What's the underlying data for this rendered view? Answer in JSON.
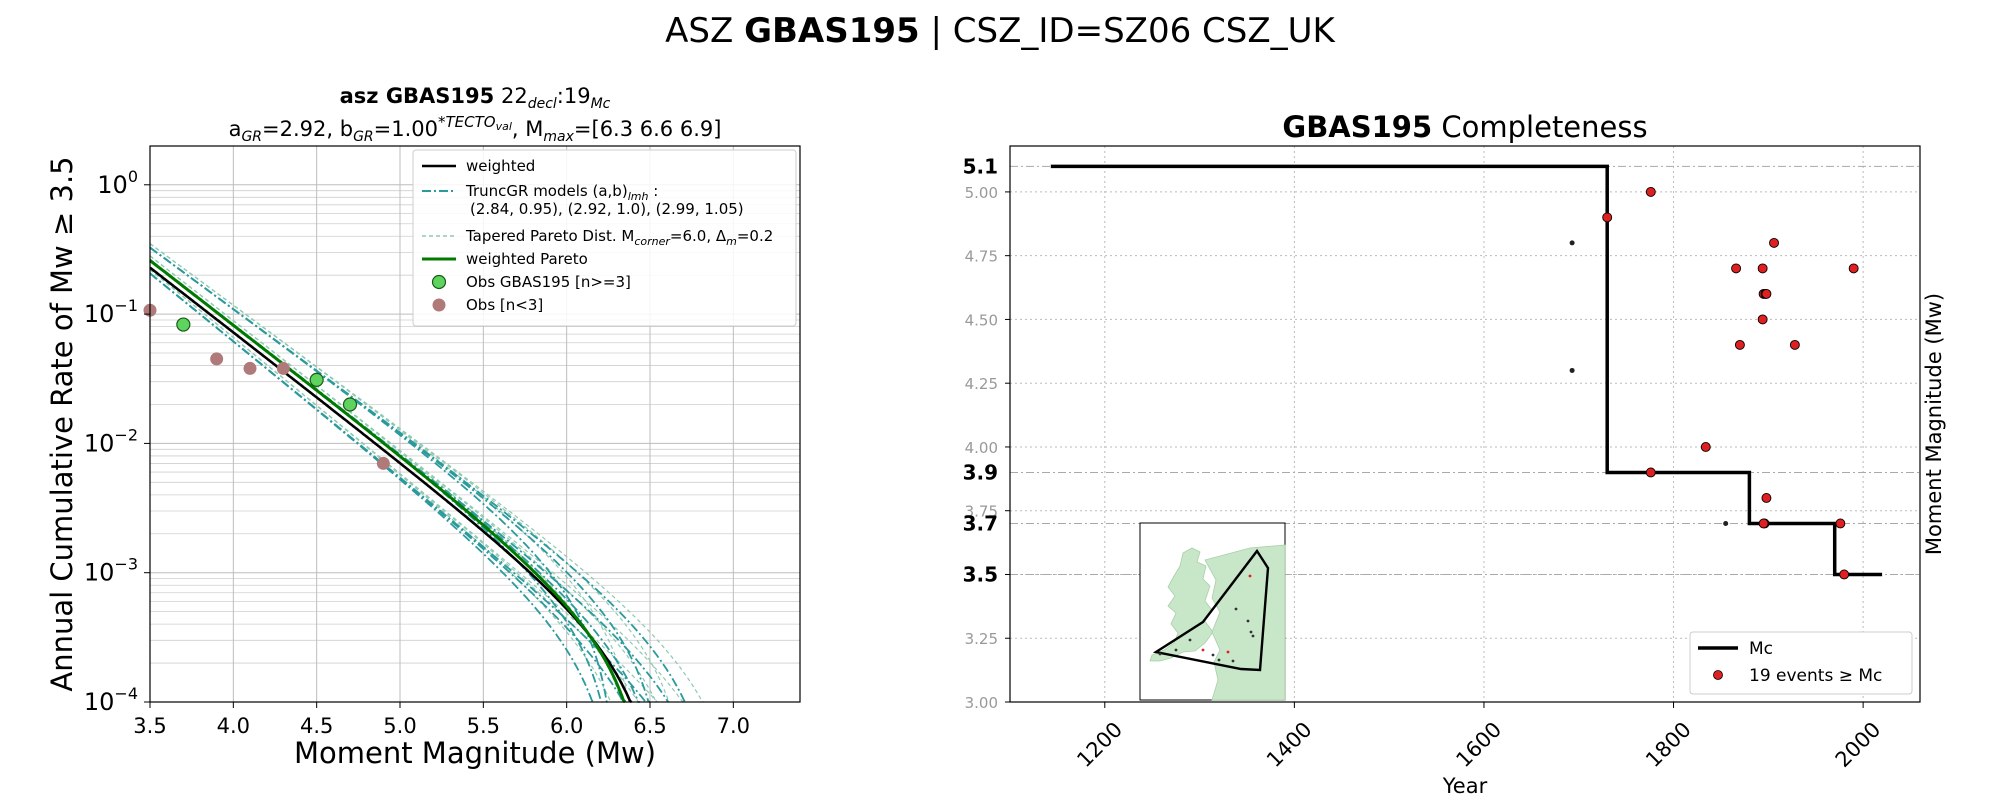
{
  "suptitle": {
    "pre": "ASZ ",
    "bold": "GBAS195",
    "post": " | CSZ_ID=SZ06 CSZ_UK"
  },
  "colors": {
    "weighted": "#000000",
    "truncgr": "#2a9a9c",
    "tapered": "#8ec9b0",
    "pareto": "#007a00",
    "obs_main": "#5ed35e",
    "obs_small": "#b07a7a",
    "events": "#e02020",
    "mc": "#000000",
    "map_land": "#c8e6c8"
  },
  "chart_data": [
    {
      "type": "line",
      "title_line1": {
        "bold": "asz GBAS195",
        "text": "22",
        "sub1": "decl",
        "mid": ":19",
        "sub2": "Mc"
      },
      "title_line2": {
        "a": "a",
        "a_sub": "GR",
        "a_val": "=2.92,  b",
        "b_sub": "GR",
        "b_val": "=1.00",
        "b_sup": "*TECTO",
        "b_sup_sub": "val",
        "m": ", M",
        "m_sub": "max",
        "m_val": "=[6.3 6.6 6.9]"
      },
      "xlabel": "Moment Magnitude (Mw)",
      "ylabel": "Annual Cumulative Rate of Mw  ≥  3.5",
      "xlim": [
        3.5,
        7.4
      ],
      "ylim_log10": [
        -4,
        0.3
      ],
      "log_y": true,
      "xticks": [
        3.5,
        4.0,
        4.5,
        5.0,
        5.5,
        6.0,
        6.5,
        7.0
      ],
      "xtick_labels": [
        "3.5",
        "4.0",
        "4.5",
        "5.0",
        "5.5",
        "6.0",
        "6.5",
        "7.0"
      ],
      "yticks": [
        {
          "base": "10",
          "exp": "0",
          "v": 0
        },
        {
          "base": "10",
          "exp": "−1",
          "v": -1
        },
        {
          "base": "10",
          "exp": "−2",
          "v": -2
        },
        {
          "base": "10",
          "exp": "−3",
          "v": -3
        },
        {
          "base": "10",
          "exp": "−4",
          "v": -4
        }
      ],
      "grid": true,
      "legend_position": "top-right",
      "a_gr": 2.92,
      "b_gr": 1.0,
      "mmax": [
        6.3,
        6.6,
        6.9
      ],
      "truncgr_ab": [
        [
          2.84,
          0.95
        ],
        [
          2.92,
          1.0
        ],
        [
          2.99,
          1.05
        ]
      ],
      "legend": [
        {
          "label": "weighted"
        },
        {
          "label": "TruncGR models (a,b)",
          "sub": "lmh",
          "post": " :",
          "line2": "(2.84, 0.95), (2.92, 1.0), (2.99, 1.05)"
        },
        {
          "label": "Tapered Pareto Dist. M",
          "sub": "corner",
          "post": "=6.0, Δ",
          "sub2": "m",
          "post2": "=0.2"
        },
        {
          "label": "weighted Pareto"
        },
        {
          "label": "Obs GBAS195 [n>=3]"
        },
        {
          "label": "Obs [n<3]"
        }
      ],
      "obs_main": [
        [
          3.7,
          0.083
        ],
        [
          4.5,
          0.031
        ],
        [
          4.7,
          0.02
        ]
      ],
      "obs_small": [
        [
          3.5,
          0.107
        ],
        [
          3.9,
          0.045
        ],
        [
          4.1,
          0.038
        ],
        [
          4.3,
          0.038
        ],
        [
          4.9,
          0.007
        ]
      ]
    },
    {
      "type": "scatter",
      "title": {
        "bold": "GBAS195",
        "text": " Completeness"
      },
      "xlabel": "Year",
      "ylabel": "Moment Magnitude (Mw)",
      "xlim": [
        1100,
        2060
      ],
      "ylim": [
        3.0,
        5.18
      ],
      "xticks": [
        1200,
        1400,
        1600,
        1800,
        2000
      ],
      "xtick_labels": [
        "1200",
        "1400",
        "1600",
        "1800",
        "2000"
      ],
      "yticks": [
        3.0,
        3.25,
        3.5,
        3.75,
        4.0,
        4.25,
        4.5,
        4.75,
        5.0
      ],
      "ytick_labels": [
        "3.00",
        "3.25",
        "",
        "3.75",
        "4.00",
        "4.25",
        "4.50",
        "4.75",
        "5.00"
      ],
      "mc_levels": [
        5.1,
        3.9,
        3.7,
        3.5
      ],
      "mc_labels": [
        "5.1",
        "3.9",
        "3.7",
        "3.5"
      ],
      "mc_step": [
        [
          1143,
          5.1
        ],
        [
          1730,
          5.1
        ],
        [
          1730,
          3.9
        ],
        [
          1880,
          3.9
        ],
        [
          1880,
          3.7
        ],
        [
          1970,
          3.7
        ],
        [
          1970,
          3.5
        ],
        [
          2020,
          3.5
        ]
      ],
      "grid": true,
      "legend_position": "bottom-right",
      "legend": [
        {
          "label": "Mc"
        },
        {
          "label": "19 events  ≥  Mc"
        }
      ],
      "events_above": [
        [
          1730,
          4.9
        ],
        [
          1776,
          5.0
        ],
        [
          1776,
          3.9
        ],
        [
          1834,
          4.0
        ],
        [
          1866,
          4.7
        ],
        [
          1870,
          4.4
        ],
        [
          1894,
          4.7
        ],
        [
          1894,
          4.5
        ],
        [
          1895,
          4.6
        ],
        [
          1897,
          4.6
        ],
        [
          1898,
          3.8
        ],
        [
          1906,
          4.8
        ],
        [
          1928,
          4.4
        ],
        [
          1990,
          4.7
        ],
        [
          1896,
          3.7
        ],
        [
          1976,
          3.7
        ],
        [
          1980,
          3.5
        ],
        [
          1898,
          4.6
        ],
        [
          1895,
          3.7
        ]
      ],
      "events_below": [
        [
          1693,
          4.8
        ],
        [
          1693,
          4.3
        ],
        [
          1855,
          3.7
        ]
      ]
    }
  ]
}
